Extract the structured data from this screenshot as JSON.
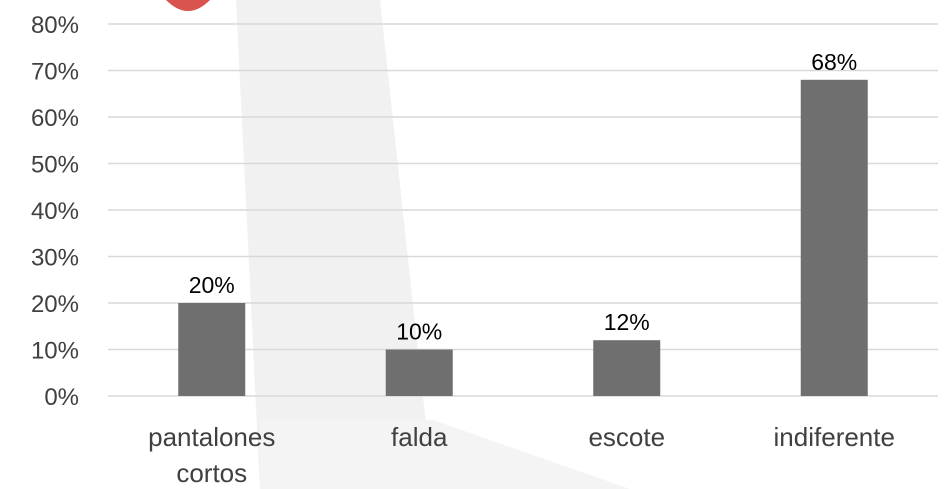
{
  "chart_data": {
    "type": "bar",
    "categories": [
      [
        "pantalones",
        "cortos"
      ],
      [
        "falda"
      ],
      [
        "escote"
      ],
      [
        "indiferente"
      ]
    ],
    "values": [
      20,
      10,
      12,
      68
    ],
    "data_labels": [
      "20%",
      "10%",
      "12%",
      "68%"
    ],
    "y_ticks": [
      "0%",
      "10%",
      "20%",
      "30%",
      "40%",
      "50%",
      "60%",
      "70%",
      "80%"
    ],
    "ylim": [
      0,
      80
    ],
    "grid": true,
    "legend": "none",
    "title": "",
    "xlabel": "",
    "ylabel": ""
  },
  "colors": {
    "bar": "#6f6f6f",
    "grid": "#d9d9d9",
    "watermark": "#efefef",
    "accent": "#d9534f"
  }
}
